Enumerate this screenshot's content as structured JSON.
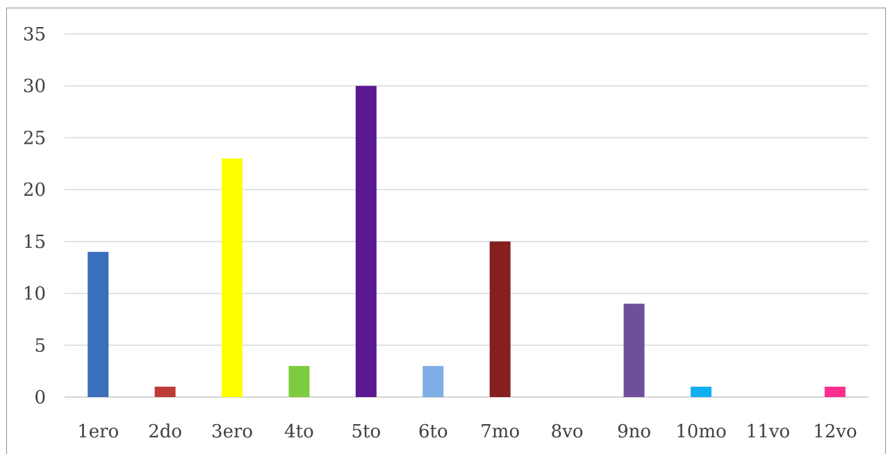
{
  "chart_data": {
    "type": "bar",
    "title": "",
    "xlabel": "",
    "ylabel": "",
    "categories": [
      "1ero",
      "2do",
      "3ero",
      "4to",
      "5to",
      "6to",
      "7mo",
      "8vo",
      "9no",
      "10mo",
      "11vo",
      "12vo"
    ],
    "values": [
      14,
      1,
      23,
      3,
      30,
      3,
      15,
      0,
      9,
      1,
      0,
      1
    ],
    "colors": [
      "#3a6fbc",
      "#be3a35",
      "#ffff00",
      "#7ecb3f",
      "#5a1891",
      "#7faee6",
      "#861f1f",
      "#7f7f7f",
      "#6f4f99",
      "#10b0f0",
      "#7f7f7f",
      "#ff2d8e"
    ],
    "ylim": [
      0,
      35
    ],
    "yticks": [
      "0",
      "5",
      "10",
      "15",
      "20",
      "25",
      "30",
      "35"
    ],
    "grid": true,
    "legend": "none"
  }
}
